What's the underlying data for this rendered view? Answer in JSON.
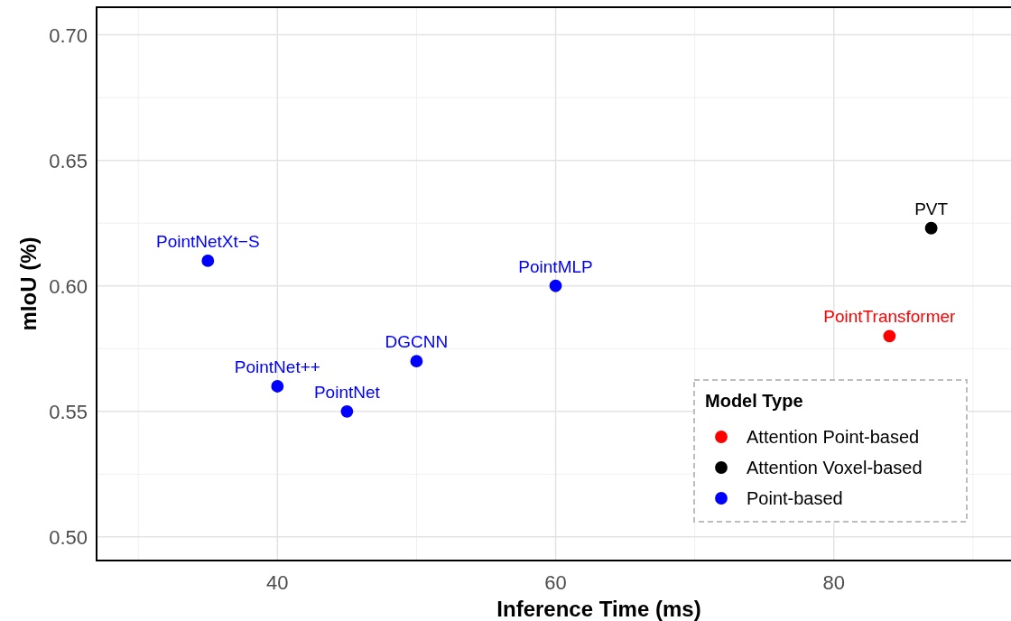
{
  "chart_data": {
    "type": "scatter",
    "xlabel": "Inference Time (ms)",
    "ylabel": "mIoU (%)",
    "legend_title": "Model Type",
    "legend": "bottom right",
    "grid": true,
    "marker": "circle",
    "xlim": [
      27,
      92.8
    ],
    "xticks": [
      40,
      60,
      80
    ],
    "ylim": [
      0.4906,
      0.711
    ],
    "yticks": [
      {
        "value": 0.5,
        "label": "0.50"
      },
      {
        "value": 0.55,
        "label": "0.55"
      },
      {
        "value": 0.6,
        "label": "0.60"
      },
      {
        "value": 0.65,
        "label": "0.65"
      },
      {
        "value": 0.7,
        "label": "0.70"
      }
    ],
    "series": [
      {
        "name": "Attention Point-based",
        "color": "#ff0000",
        "x": [
          84
        ],
        "values": [
          0.58
        ]
      },
      {
        "name": "Attention Voxel-based",
        "color": "#000000",
        "x": [
          87
        ],
        "values": [
          0.623
        ]
      },
      {
        "name": "Point-based",
        "color": "#0000ff",
        "x": [
          35,
          40,
          45,
          50,
          60
        ],
        "values": [
          0.61,
          0.56,
          0.55,
          0.57,
          0.6
        ]
      }
    ],
    "annotations": [
      {
        "text": "PointTransformer",
        "x": 84,
        "y": 0.58
      },
      {
        "text": "PVT",
        "x": 87,
        "y": 0.623
      },
      {
        "text": "PointNetXt−S",
        "x": 35,
        "y": 0.61
      },
      {
        "text": "PointNet++",
        "x": 40,
        "y": 0.56
      },
      {
        "text": "PointNet",
        "x": 45,
        "y": 0.55
      },
      {
        "text": "DGCNN",
        "x": 50,
        "y": 0.57
      },
      {
        "text": "PointMLP",
        "x": 60,
        "y": 0.6
      }
    ]
  }
}
